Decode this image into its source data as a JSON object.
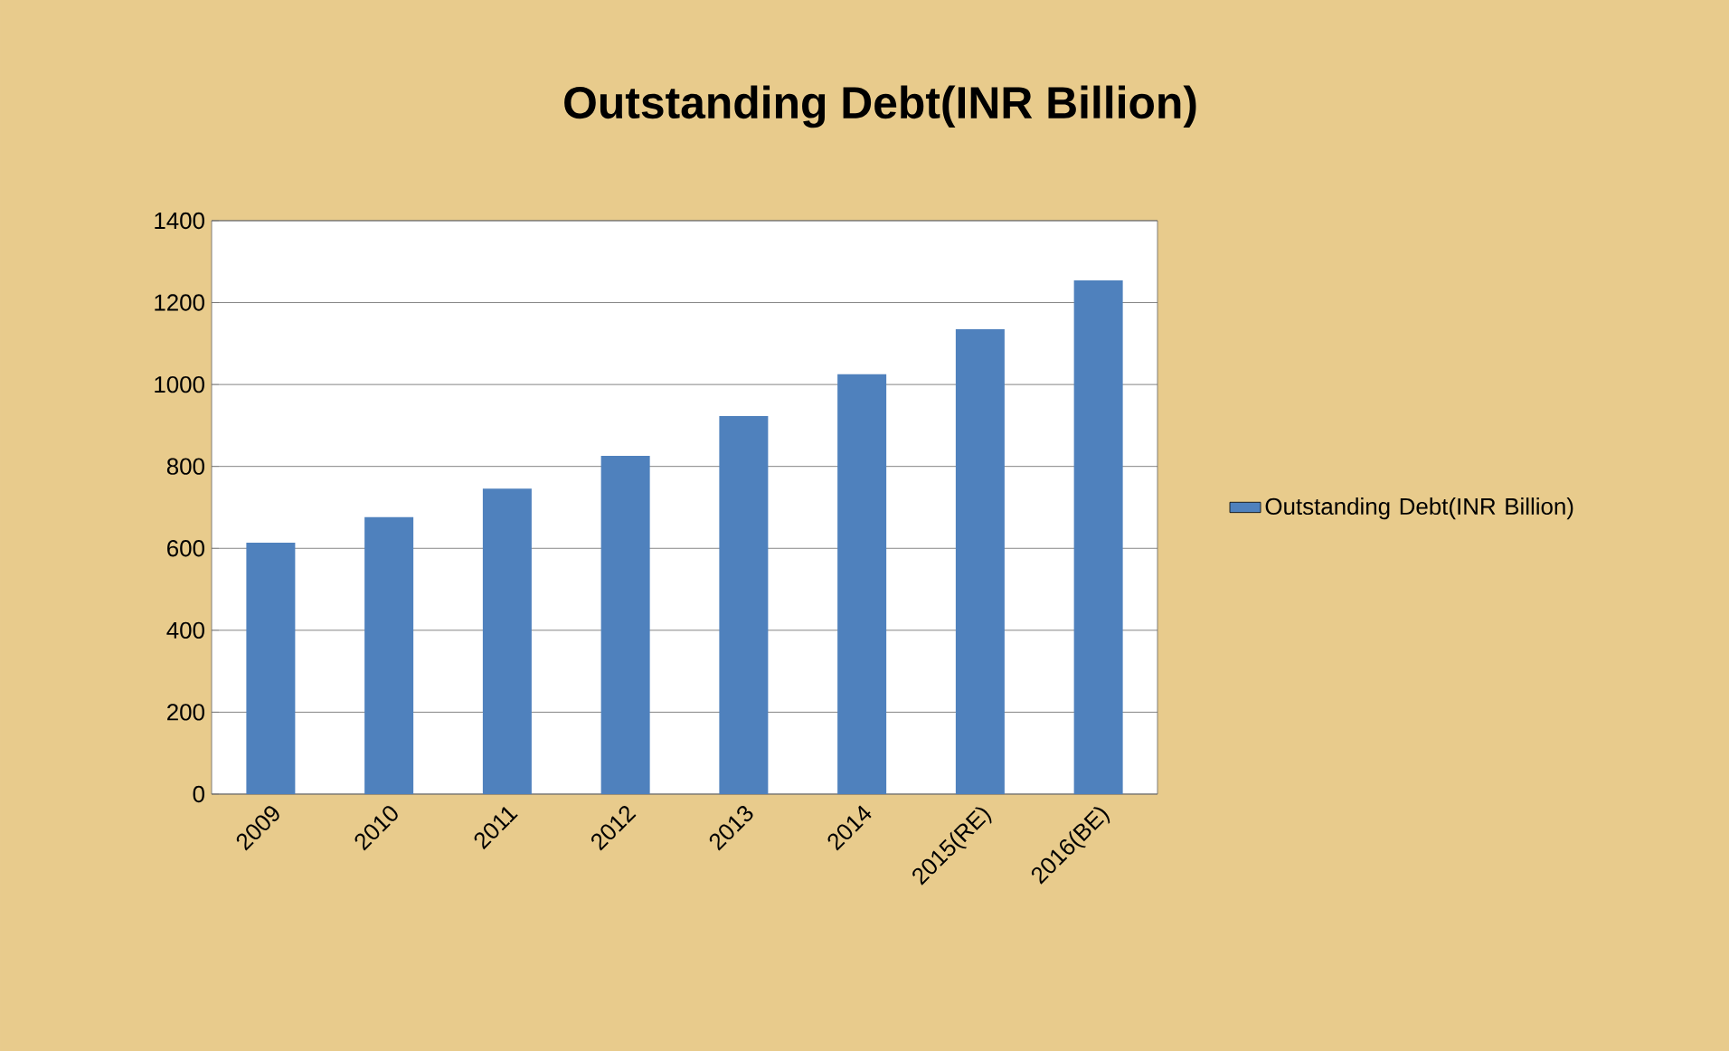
{
  "chart_data": {
    "type": "bar",
    "title": "Outstanding Debt(INR Billion)",
    "categories": [
      "2009",
      "2010",
      "2011",
      "2012",
      "2013",
      "2014",
      "2015(RE)",
      "2016(BE)"
    ],
    "series": [
      {
        "name": "Outstanding Debt(INR Billion)",
        "color": "#4f81bd",
        "values": [
          614,
          676,
          746,
          826,
          923,
          1025,
          1135,
          1254
        ]
      }
    ],
    "ylim": [
      0,
      1400
    ],
    "yticks": [
      0,
      200,
      400,
      600,
      800,
      1000,
      1200,
      1400
    ],
    "grid": "y",
    "legend": "right"
  }
}
